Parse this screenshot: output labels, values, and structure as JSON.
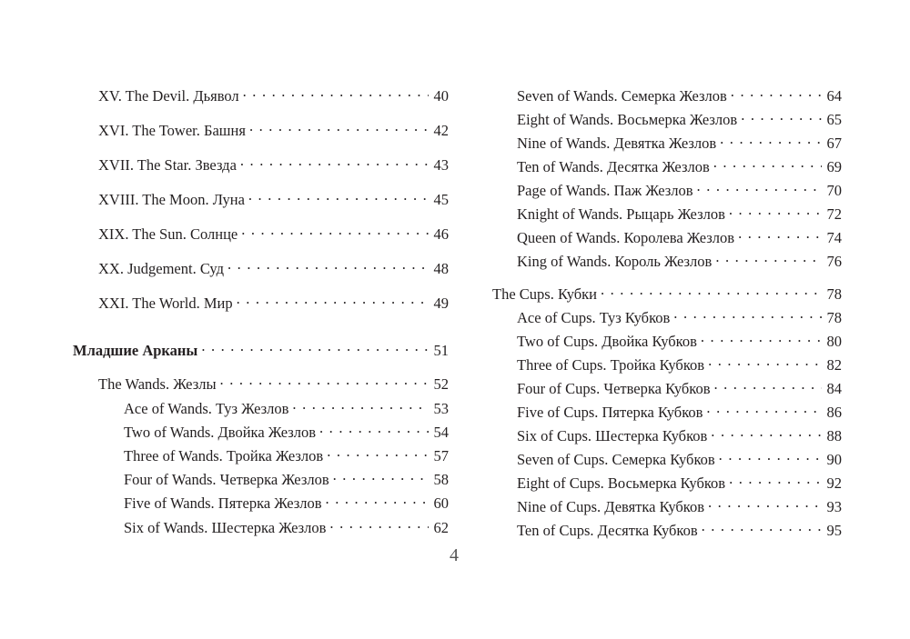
{
  "left_column": [
    {
      "level": 1,
      "title": "XV. The Devil. Дьявол",
      "page": "40"
    },
    {
      "level": 1,
      "title": "XVI. The Tower. Башня",
      "page": "42"
    },
    {
      "level": 1,
      "title": "XVII. The Star. Звезда",
      "page": "43"
    },
    {
      "level": 1,
      "title": "XVIII. The Moon. Луна",
      "page": "45"
    },
    {
      "level": 1,
      "title": "XIX. The Sun. Солнце",
      "page": "46"
    },
    {
      "level": 1,
      "title": "XX. Judgement. Суд",
      "page": "48"
    },
    {
      "level": 1,
      "title": "XXI. The World. Мир",
      "page": "49"
    },
    {
      "level": 0,
      "title": "Младшие Арканы",
      "page": "51"
    },
    {
      "level": 1,
      "title": "The Wands. Жезлы",
      "page": "52"
    },
    {
      "level": 2,
      "title": "Ace of Wands. Туз Жезлов",
      "page": "53"
    },
    {
      "level": 2,
      "title": "Two of Wands. Двойка Жезлов",
      "page": "54"
    },
    {
      "level": 2,
      "title": "Three of Wands. Тройка Жезлов",
      "page": "57"
    },
    {
      "level": 2,
      "title": "Four of Wands. Четверка Жезлов",
      "page": "58"
    },
    {
      "level": 2,
      "title": "Five of Wands. Пятерка Жезлов",
      "page": "60"
    },
    {
      "level": 2,
      "title": "Six of Wands. Шестерка Жезлов",
      "page": "62"
    }
  ],
  "right_column": [
    {
      "level": 2,
      "title": "Seven of Wands. Семерка Жезлов",
      "page": "64"
    },
    {
      "level": 2,
      "title": "Eight of Wands. Восьмерка Жезлов",
      "page": "65"
    },
    {
      "level": 2,
      "title": "Nine of Wands. Девятка Жезлов",
      "page": "67"
    },
    {
      "level": 2,
      "title": "Ten of Wands. Десятка Жезлов",
      "page": "69"
    },
    {
      "level": 2,
      "title": "Page of Wands. Паж Жезлов",
      "page": "70"
    },
    {
      "level": 2,
      "title": "Knight of Wands. Рыцарь Жезлов",
      "page": "72"
    },
    {
      "level": 2,
      "title": "Queen of Wands. Королева Жезлов",
      "page": "74"
    },
    {
      "level": 2,
      "title": "King of Wands. Король Жезлов",
      "page": "76"
    },
    {
      "level": 1,
      "title": "The Cups. Кубки",
      "page": "78"
    },
    {
      "level": 2,
      "title": "Ace of Cups. Туз Кубков",
      "page": "78"
    },
    {
      "level": 2,
      "title": "Two of Cups. Двойка Кубков",
      "page": "80"
    },
    {
      "level": 2,
      "title": "Three of Cups. Тройка Кубков",
      "page": "82"
    },
    {
      "level": 2,
      "title": "Four of Cups. Четверка Кубков",
      "page": "84"
    },
    {
      "level": 2,
      "title": "Five of Cups. Пятерка Кубков",
      "page": "86"
    },
    {
      "level": 2,
      "title": "Six of Cups. Шестерка Кубков",
      "page": "88"
    },
    {
      "level": 2,
      "title": "Seven of Cups. Семерка Кубков",
      "page": "90"
    },
    {
      "level": 2,
      "title": "Eight of Cups. Восьмерка Кубков",
      "page": "92"
    },
    {
      "level": 2,
      "title": "Nine of Cups. Девятка Кубков",
      "page": "93"
    },
    {
      "level": 2,
      "title": "Ten of Cups. Десятка Кубков",
      "page": "95"
    }
  ],
  "page_number": "4"
}
